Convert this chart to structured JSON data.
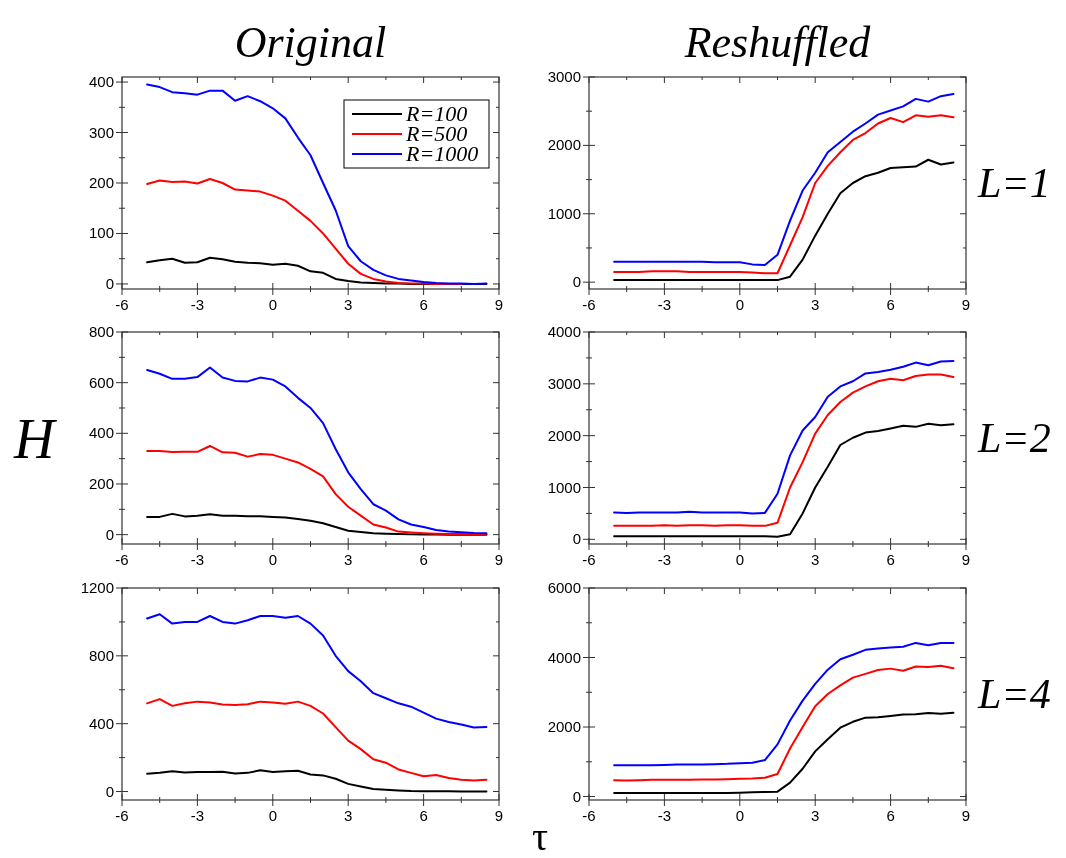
{
  "chart_data": [
    {
      "type": "line",
      "title": "Original",
      "x": [
        -5,
        -4.5,
        -4,
        -3.5,
        -3,
        -2.5,
        -2,
        -1.5,
        -1,
        -0.5,
        0,
        0.5,
        1,
        1.5,
        2,
        2.5,
        3,
        3.5,
        4,
        4.5,
        5,
        5.5,
        6,
        6.5,
        7,
        7.5,
        8,
        8.5
      ],
      "xlim": [
        -6,
        9
      ],
      "xticks": [
        -6,
        {
          "value": -4.5,
          "label": null
        },
        -3,
        {
          "value": -1.5,
          "label": null
        },
        0,
        {
          "value": 1.5,
          "label": null
        },
        3,
        {
          "value": 4.5,
          "label": null
        },
        6,
        {
          "value": 7.5,
          "label": null
        },
        9
      ],
      "ylim": [
        -10,
        410
      ],
      "yticks": [
        0,
        {
          "value": 50,
          "label": null
        },
        100,
        {
          "value": 150,
          "label": null
        },
        200,
        {
          "value": 250,
          "label": null
        },
        300,
        {
          "value": 350,
          "label": null
        },
        400
      ],
      "legend": "top right",
      "series": [
        {
          "name": "R=100",
          "color": "#000000",
          "values": [
            43,
            47,
            50,
            42,
            43,
            52,
            49,
            44,
            42,
            41,
            38,
            40,
            36,
            25,
            22,
            10,
            6,
            3,
            2,
            1,
            1,
            0,
            0,
            0,
            0,
            0,
            0,
            0
          ]
        },
        {
          "name": "R=500",
          "color": "#ff0000",
          "values": [
            198,
            205,
            202,
            203,
            199,
            208,
            200,
            187,
            185,
            183,
            175,
            165,
            145,
            125,
            100,
            70,
            40,
            20,
            10,
            5,
            2,
            1,
            1,
            0,
            0,
            0,
            null,
            null
          ]
        },
        {
          "name": "R=1000",
          "color": "#0000ff",
          "values": [
            395,
            390,
            380,
            378,
            375,
            383,
            383,
            363,
            372,
            362,
            348,
            328,
            290,
            255,
            200,
            146,
            75,
            45,
            28,
            17,
            10,
            7,
            4,
            2,
            1,
            1,
            0,
            1
          ]
        }
      ]
    },
    {
      "type": "line",
      "title": "Reshuffled",
      "y2label": "L=1",
      "x": [
        -5,
        -4.5,
        -4,
        -3.5,
        -3,
        -2.5,
        -2,
        -1.5,
        -1,
        -0.5,
        0,
        0.5,
        1,
        1.5,
        2,
        2.5,
        3,
        3.5,
        4,
        4.5,
        5,
        5.5,
        6,
        6.5,
        7,
        7.5,
        8,
        8.5
      ],
      "xlim": [
        -6,
        9
      ],
      "xticks": [
        -6,
        {
          "value": -4.5,
          "label": null
        },
        -3,
        {
          "value": -1.5,
          "label": null
        },
        0,
        {
          "value": 1.5,
          "label": null
        },
        3,
        {
          "value": 4.5,
          "label": null
        },
        6,
        {
          "value": 7.5,
          "label": null
        },
        9
      ],
      "ylim": [
        -100,
        3000
      ],
      "yticks": [
        0,
        {
          "value": 500,
          "label": null
        },
        1000,
        {
          "value": 1500,
          "label": null
        },
        2000,
        {
          "value": 2500,
          "label": null
        },
        3000
      ],
      "series": [
        {
          "color": "#000000",
          "values": [
            30,
            30,
            30,
            30,
            30,
            30,
            30,
            30,
            30,
            30,
            30,
            30,
            30,
            30,
            80,
            330,
            680,
            1000,
            1300,
            1450,
            1550,
            1600,
            1670,
            1680,
            1690,
            1790,
            1720,
            1750
          ]
        },
        {
          "color": "#ff0000",
          "values": [
            150,
            150,
            150,
            160,
            160,
            160,
            150,
            150,
            150,
            150,
            150,
            140,
            130,
            130,
            540,
            950,
            1450,
            1700,
            1900,
            2080,
            2180,
            2320,
            2400,
            2340,
            2440,
            2420,
            2440,
            2410
          ]
        },
        {
          "color": "#0000ff",
          "values": [
            300,
            300,
            300,
            300,
            300,
            300,
            300,
            300,
            290,
            290,
            290,
            260,
            250,
            400,
            900,
            1340,
            1600,
            1900,
            2050,
            2200,
            2320,
            2450,
            2510,
            2570,
            2680,
            2640,
            2720,
            2750
          ]
        }
      ]
    },
    {
      "type": "line",
      "ylabel": "H",
      "x": [
        -5,
        -4.5,
        -4,
        -3.5,
        -3,
        -2.5,
        -2,
        -1.5,
        -1,
        -0.5,
        0,
        0.5,
        1,
        1.5,
        2,
        2.5,
        3,
        3.5,
        4,
        4.5,
        5,
        5.5,
        6,
        6.5,
        7,
        7.5,
        8,
        8.5
      ],
      "xlim": [
        -6,
        9
      ],
      "xticks": [
        -6,
        {
          "value": -4.5,
          "label": null
        },
        -3,
        {
          "value": -1.5,
          "label": null
        },
        0,
        {
          "value": 1.5,
          "label": null
        },
        3,
        {
          "value": 4.5,
          "label": null
        },
        6,
        {
          "value": 7.5,
          "label": null
        },
        9
      ],
      "ylim": [
        -37,
        800
      ],
      "yticks": [
        0,
        {
          "value": 100,
          "label": null
        },
        200,
        {
          "value": 300,
          "label": null
        },
        400,
        {
          "value": 500,
          "label": null
        },
        600,
        {
          "value": 700,
          "label": null
        },
        800
      ],
      "series": [
        {
          "color": "#000000",
          "values": [
            70,
            70,
            82,
            72,
            75,
            80,
            75,
            75,
            73,
            73,
            70,
            68,
            62,
            55,
            45,
            30,
            15,
            10,
            5,
            3,
            2,
            1,
            1,
            1,
            0,
            0,
            0,
            0
          ]
        },
        {
          "color": "#ff0000",
          "values": [
            330,
            330,
            326,
            327,
            327,
            350,
            325,
            323,
            308,
            318,
            315,
            300,
            285,
            260,
            230,
            160,
            110,
            75,
            40,
            28,
            12,
            8,
            5,
            3,
            2,
            2,
            1,
            1
          ]
        },
        {
          "color": "#0000ff",
          "values": [
            650,
            635,
            615,
            615,
            622,
            660,
            620,
            607,
            605,
            620,
            612,
            585,
            540,
            500,
            440,
            338,
            246,
            180,
            120,
            95,
            60,
            40,
            30,
            18,
            12,
            9,
            6,
            5
          ]
        }
      ]
    },
    {
      "type": "line",
      "y2label": "L=2",
      "x": [
        -5,
        -4.5,
        -4,
        -3.5,
        -3,
        -2.5,
        -2,
        -1.5,
        -1,
        -0.5,
        0,
        0.5,
        1,
        1.5,
        2,
        2.5,
        3,
        3.5,
        4,
        4.5,
        5,
        5.5,
        6,
        6.5,
        7,
        7.5,
        8,
        8.5
      ],
      "xlim": [
        -6,
        9
      ],
      "xticks": [
        -6,
        {
          "value": -4.5,
          "label": null
        },
        -3,
        {
          "value": -1.5,
          "label": null
        },
        0,
        {
          "value": 1.5,
          "label": null
        },
        3,
        {
          "value": 4.5,
          "label": null
        },
        6,
        {
          "value": 7.5,
          "label": null
        },
        9
      ],
      "ylim": [
        -90,
        4000
      ],
      "yticks": [
        0,
        {
          "value": 500,
          "label": null
        },
        1000,
        {
          "value": 1500,
          "label": null
        },
        2000,
        {
          "value": 2500,
          "label": null
        },
        3000,
        {
          "value": 3500,
          "label": null
        },
        4000
      ],
      "series": [
        {
          "color": "#000000",
          "values": [
            60,
            60,
            60,
            60,
            60,
            60,
            60,
            60,
            60,
            60,
            60,
            60,
            60,
            50,
            100,
            500,
            1000,
            1400,
            1820,
            1960,
            2060,
            2090,
            2140,
            2190,
            2170,
            2230,
            2200,
            2220
          ]
        },
        {
          "color": "#ff0000",
          "values": [
            260,
            260,
            260,
            260,
            270,
            260,
            270,
            270,
            260,
            270,
            270,
            260,
            260,
            320,
            1000,
            1490,
            2040,
            2400,
            2650,
            2830,
            2950,
            3050,
            3100,
            3070,
            3150,
            3180,
            3180,
            3130
          ]
        },
        {
          "color": "#0000ff",
          "values": [
            520,
            510,
            520,
            520,
            520,
            520,
            530,
            520,
            520,
            520,
            520,
            500,
            510,
            880,
            1620,
            2100,
            2360,
            2750,
            2950,
            3050,
            3200,
            3230,
            3270,
            3330,
            3410,
            3360,
            3430,
            3440
          ]
        }
      ]
    },
    {
      "type": "line",
      "xlabel": "τ",
      "x": [
        -5,
        -4.5,
        -4,
        -3.5,
        -3,
        -2.5,
        -2,
        -1.5,
        -1,
        -0.5,
        0,
        0.5,
        1,
        1.5,
        2,
        2.5,
        3,
        3.5,
        4,
        4.5,
        5,
        5.5,
        6,
        6.5,
        7,
        7.5,
        8,
        8.5
      ],
      "xlim": [
        -6,
        9
      ],
      "xticks": [
        -6,
        {
          "value": -4.5,
          "label": null
        },
        -3,
        {
          "value": -1.5,
          "label": null
        },
        0,
        {
          "value": 1.5,
          "label": null
        },
        3,
        {
          "value": 4.5,
          "label": null
        },
        6,
        {
          "value": 7.5,
          "label": null
        },
        9
      ],
      "ylim": [
        -50,
        1200
      ],
      "yticks": [
        0,
        {
          "value": 200,
          "label": null
        },
        400,
        {
          "value": 600,
          "label": null
        },
        800,
        {
          "value": 1000,
          "label": null
        },
        1200
      ],
      "series": [
        {
          "color": "#000000",
          "values": [
            105,
            110,
            120,
            112,
            115,
            115,
            117,
            106,
            110,
            125,
            115,
            120,
            122,
            100,
            95,
            75,
            45,
            30,
            15,
            10,
            6,
            3,
            2,
            1,
            1,
            0,
            0,
            0
          ]
        },
        {
          "color": "#ff0000",
          "values": [
            520,
            545,
            505,
            520,
            530,
            525,
            513,
            510,
            515,
            530,
            525,
            518,
            530,
            505,
            460,
            380,
            300,
            250,
            190,
            170,
            130,
            110,
            90,
            97,
            80,
            70,
            65,
            70
          ]
        },
        {
          "color": "#0000ff",
          "values": [
            1020,
            1045,
            990,
            1000,
            1000,
            1035,
            1000,
            990,
            1010,
            1035,
            1035,
            1025,
            1035,
            990,
            920,
            800,
            710,
            650,
            580,
            550,
            520,
            500,
            465,
            430,
            410,
            395,
            378,
            380
          ]
        }
      ]
    },
    {
      "type": "line",
      "y2label": "L=4",
      "x": [
        -5,
        -4.5,
        -4,
        -3.5,
        -3,
        -2.5,
        -2,
        -1.5,
        -1,
        -0.5,
        0,
        0.5,
        1,
        1.5,
        2,
        2.5,
        3,
        3.5,
        4,
        4.5,
        5,
        5.5,
        6,
        6.5,
        7,
        7.5,
        8,
        8.5
      ],
      "xlim": [
        -6,
        9
      ],
      "xticks": [
        -6,
        {
          "value": -4.5,
          "label": null
        },
        -3,
        {
          "value": -1.5,
          "label": null
        },
        0,
        {
          "value": 1.5,
          "label": null
        },
        3,
        {
          "value": 4.5,
          "label": null
        },
        6,
        {
          "value": 7.5,
          "label": null
        },
        9
      ],
      "ylim": [
        -100,
        6000
      ],
      "yticks": [
        0,
        {
          "value": 1000,
          "label": null
        },
        2000,
        {
          "value": 3000,
          "label": null
        },
        4000,
        {
          "value": 5000,
          "label": null
        },
        6000
      ],
      "series": [
        {
          "color": "#000000",
          "values": [
            100,
            100,
            100,
            100,
            100,
            100,
            100,
            100,
            100,
            100,
            110,
            120,
            130,
            140,
            400,
            800,
            1300,
            1650,
            1980,
            2150,
            2270,
            2280,
            2320,
            2360,
            2370,
            2400,
            2380,
            2410
          ]
        },
        {
          "color": "#ff0000",
          "values": [
            470,
            460,
            470,
            480,
            480,
            480,
            480,
            490,
            490,
            500,
            510,
            520,
            540,
            650,
            1380,
            2000,
            2600,
            2950,
            3200,
            3420,
            3530,
            3640,
            3680,
            3620,
            3740,
            3730,
            3760,
            3690
          ]
        },
        {
          "color": "#0000ff",
          "values": [
            900,
            900,
            900,
            900,
            910,
            920,
            920,
            920,
            930,
            940,
            960,
            970,
            1050,
            1500,
            2190,
            2760,
            3240,
            3650,
            3950,
            4080,
            4220,
            4260,
            4290,
            4310,
            4420,
            4350,
            4420,
            4420
          ]
        }
      ]
    }
  ]
}
